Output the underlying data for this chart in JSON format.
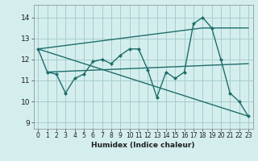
{
  "title": "",
  "xlabel": "Humidex (Indice chaleur)",
  "bg_color": "#d4eeee",
  "line_color": "#1e6e6a",
  "grid_color": "#a8cccc",
  "xlim": [
    -0.5,
    23.5
  ],
  "ylim": [
    8.7,
    14.6
  ],
  "yticks": [
    9,
    10,
    11,
    12,
    13,
    14
  ],
  "xticks": [
    0,
    1,
    2,
    3,
    4,
    5,
    6,
    7,
    8,
    9,
    10,
    11,
    12,
    13,
    14,
    15,
    16,
    17,
    18,
    19,
    20,
    21,
    22,
    23
  ],
  "lines": [
    {
      "x": [
        0,
        1,
        2,
        3,
        4,
        5,
        6,
        7,
        8,
        9,
        10,
        11,
        12,
        13,
        14,
        15,
        16,
        17,
        18,
        19,
        20,
        21,
        22,
        23
      ],
      "y": [
        12.5,
        11.4,
        11.3,
        10.4,
        11.1,
        11.3,
        11.9,
        12.0,
        11.8,
        12.2,
        12.5,
        12.5,
        11.5,
        10.2,
        11.4,
        11.1,
        11.4,
        13.7,
        14.0,
        13.5,
        12.0,
        10.4,
        10.0,
        9.3
      ],
      "marker": "D",
      "markersize": 2.0,
      "linewidth": 1.0,
      "use_marker": true
    },
    {
      "x": [
        0,
        23
      ],
      "y": [
        12.5,
        9.3
      ],
      "marker": null,
      "markersize": 0,
      "linewidth": 1.0,
      "use_marker": false
    },
    {
      "x": [
        0,
        18,
        23
      ],
      "y": [
        12.5,
        13.5,
        13.5
      ],
      "marker": null,
      "markersize": 0,
      "linewidth": 1.0,
      "use_marker": false
    },
    {
      "x": [
        1,
        23
      ],
      "y": [
        11.4,
        11.8
      ],
      "marker": null,
      "markersize": 0,
      "linewidth": 1.0,
      "use_marker": false
    }
  ]
}
